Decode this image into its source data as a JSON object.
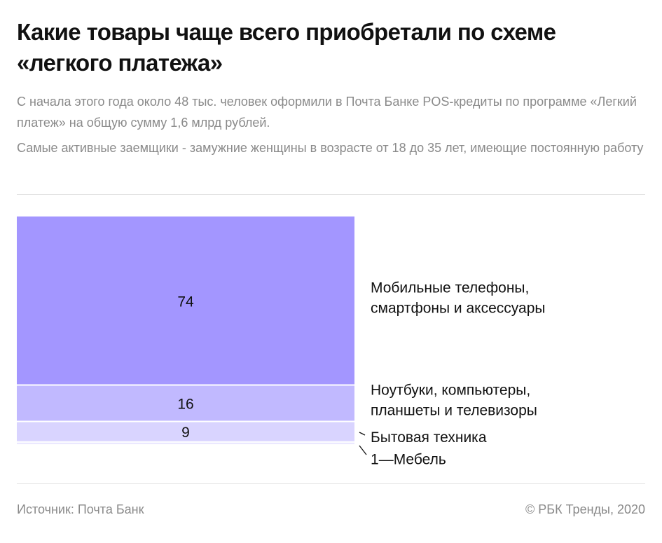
{
  "header": {
    "title": "Какие товары чаще всего приобретали по схеме «легкого платежа»",
    "subtitle_1": "С начала этого года около 48 тыс. человек оформили в Почта Банке POS-кредиты по программе «Легкий платеж» на общую сумму 1,6 млрд рублей.",
    "subtitle_2": "Самые активные заемщики - замужние женщины в возрасте от 18 до 35 лет, имеющие постоянную работу"
  },
  "colors": {
    "accent": "#a396ff",
    "segment_2": "#c1b9ff",
    "segment_3": "#d9d4ff",
    "segment_4": "#ebe8ff"
  },
  "chart_data": {
    "type": "bar",
    "stacked": true,
    "unit": "%",
    "categories": [
      "Мобильные телефоны, смартфоны и аксессуары",
      "Ноутбуки, компьютеры, планшеты и телевизоры",
      "Бытовая техника",
      "Мебель"
    ],
    "category_lines": [
      [
        "Мобильные телефоны,",
        "смартфоны и аксессуары"
      ],
      [
        "Ноутбуки, компьютеры,",
        "планшеты и телевизоры"
      ],
      [
        "Бытовая техника"
      ],
      [
        "Мебель"
      ]
    ],
    "values": [
      74,
      16,
      9,
      1
    ],
    "value_labels": [
      "74",
      "16",
      "9",
      "1"
    ],
    "label_separator": "—",
    "total": 100,
    "legend": "right"
  },
  "footer": {
    "source": "Источник:  Почта Банк",
    "copyright": "©  РБК Тренды, 2020"
  }
}
